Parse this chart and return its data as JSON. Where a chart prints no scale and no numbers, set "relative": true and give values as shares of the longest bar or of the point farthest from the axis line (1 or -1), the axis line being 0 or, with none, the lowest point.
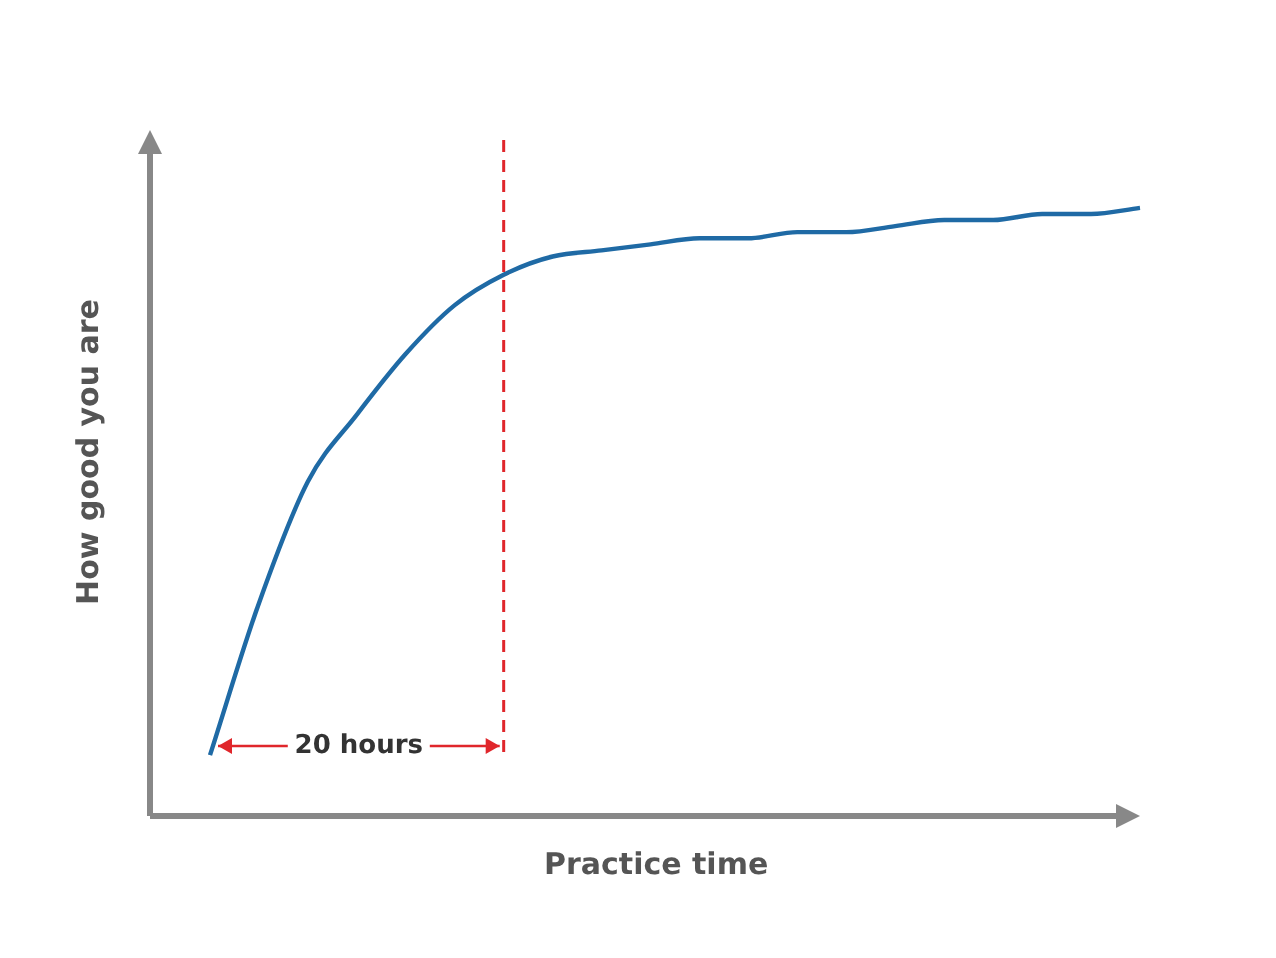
{
  "chart_data": {
    "type": "line",
    "relative": true,
    "xlabel": "Practice time",
    "ylabel": "How good you are",
    "categories": [
      null,
      null,
      null,
      null,
      null,
      null,
      null,
      null,
      null,
      null,
      null,
      null,
      null,
      null,
      null,
      null,
      null,
      null,
      null,
      null
    ],
    "series": [
      {
        "color": "#1f6aa5",
        "values": [
          0.1,
          0.35,
          0.55,
          0.66,
          0.76,
          0.84,
          0.89,
          0.92,
          0.93,
          0.94,
          0.95,
          0.95,
          0.96,
          0.96,
          0.97,
          0.98,
          0.98,
          0.99,
          0.99,
          1
        ]
      }
    ],
    "annotations": [
      "20 hours"
    ],
    "marker": "none",
    "grid": false,
    "legend": false,
    "tick_labels": false
  }
}
